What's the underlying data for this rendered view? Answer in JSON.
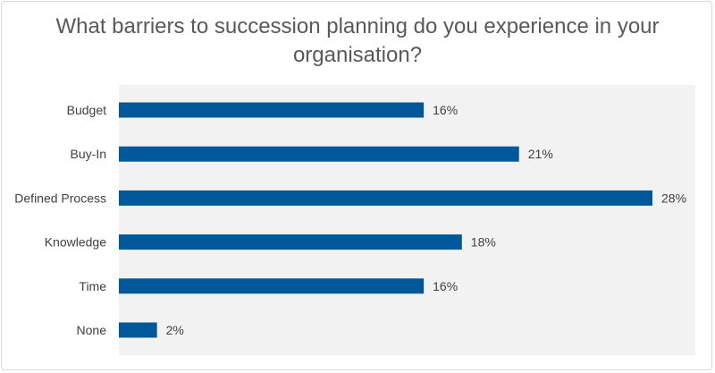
{
  "chart_data": {
    "type": "bar",
    "orientation": "horizontal",
    "title": "What barriers to succession planning do you experience in your organisation?",
    "categories": [
      "Budget",
      "Buy-In",
      "Defined Process",
      "Knowledge",
      "Time",
      "None"
    ],
    "values": [
      16,
      21,
      28,
      18,
      16,
      2
    ],
    "value_labels": [
      "16%",
      "21%",
      "28%",
      "18%",
      "16%",
      "2%"
    ],
    "unit": "%",
    "xlim": [
      0,
      30
    ],
    "grid": false,
    "legend": "none",
    "colors": {
      "bar": "#00589b",
      "plot_background": "#f2f2f2",
      "text": "#404040",
      "title": "#595959"
    }
  }
}
